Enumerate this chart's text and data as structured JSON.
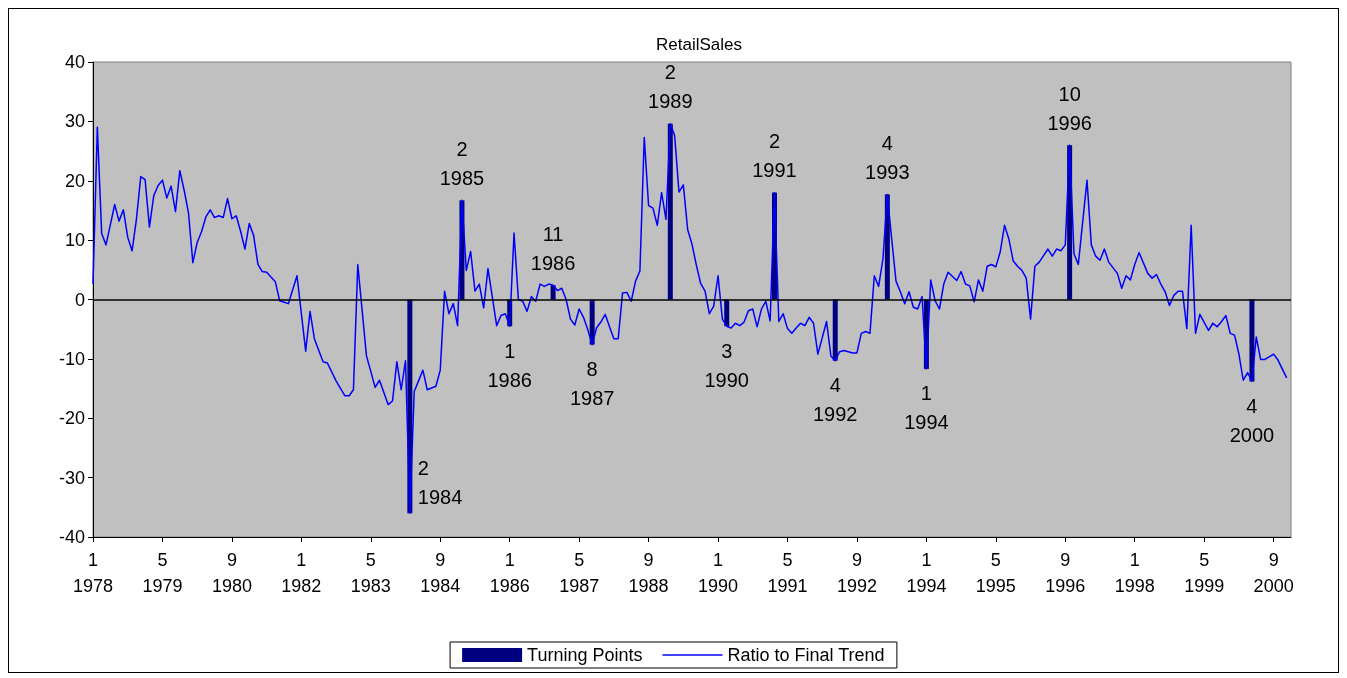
{
  "chart_data": {
    "type": "line",
    "title": "RetailSales",
    "xlim": [
      "1978-01",
      "2001-01"
    ],
    "xticks": [
      {
        "value": "1978-01",
        "label": "1\n1978"
      },
      {
        "value": "1979-05",
        "label": "5\n1979"
      },
      {
        "value": "1980-09",
        "label": "9\n1980"
      },
      {
        "value": "1982-01",
        "label": "1\n1982"
      },
      {
        "value": "1983-05",
        "label": "5\n1983"
      },
      {
        "value": "1984-09",
        "label": "9\n1984"
      },
      {
        "value": "1986-01",
        "label": "1\n1986"
      },
      {
        "value": "1987-05",
        "label": "5\n1987"
      },
      {
        "value": "1988-09",
        "label": "9\n1988"
      },
      {
        "value": "1990-01",
        "label": "1\n1990"
      },
      {
        "value": "1991-05",
        "label": "5\n1991"
      },
      {
        "value": "1992-09",
        "label": "9\n1992"
      },
      {
        "value": "1994-01",
        "label": "1\n1994"
      },
      {
        "value": "1995-05",
        "label": "5\n1995"
      },
      {
        "value": "1996-09",
        "label": "9\n1996"
      },
      {
        "value": "1998-01",
        "label": "1\n1998"
      },
      {
        "value": "1999-05",
        "label": "5\n1999"
      },
      {
        "value": "2000-09",
        "label": "9\n2000"
      }
    ],
    "ylim": [
      -40,
      40
    ],
    "yticks": [
      -40,
      -30,
      -20,
      -10,
      0,
      10,
      20,
      30,
      40
    ],
    "grid": false,
    "legend": "bottom",
    "marker": "none",
    "ref_lines": [
      {
        "axis": "y",
        "value": 0,
        "color": "#000000"
      }
    ],
    "series": [
      {
        "name": "Turning Points",
        "type": "bar",
        "color": "#000080",
        "x": [
          "1984-02",
          "1985-02",
          "1986-01",
          "1986-11",
          "1987-08",
          "1989-02",
          "1990-03",
          "1991-02",
          "1992-04",
          "1993-04",
          "1994-01",
          "1996-10",
          "2000-04"
        ],
        "values": [
          -36,
          16.7,
          -4.5,
          2.4,
          -7.6,
          29.6,
          -4.5,
          18,
          -10.3,
          17.7,
          -11.7,
          26,
          -13.8
        ]
      },
      {
        "name": "Ratio to Final Trend",
        "color": "#0000ff",
        "x": [
          "1978-01",
          "1978-02",
          "1978-03",
          "1978-04",
          "1978-06",
          "1978-07",
          "1978-08",
          "1978-09",
          "1978-10",
          "1978-11",
          "1978-12",
          "1979-01",
          "1979-02",
          "1979-03",
          "1979-04",
          "1979-05",
          "1979-06",
          "1979-07",
          "1979-08",
          "1979-09",
          "1979-10",
          "1979-11",
          "1979-12",
          "1980-01",
          "1980-02",
          "1980-03",
          "1980-04",
          "1980-05",
          "1980-06",
          "1980-07",
          "1980-08",
          "1980-09",
          "1980-10",
          "1980-11",
          "1980-12",
          "1981-01",
          "1981-02",
          "1981-03",
          "1981-04",
          "1981-05",
          "1981-07",
          "1981-08",
          "1981-10",
          "1981-12",
          "1982-02",
          "1982-03",
          "1982-04",
          "1982-06",
          "1982-07",
          "1982-09",
          "1982-11",
          "1982-12",
          "1983-01",
          "1983-02",
          "1983-04",
          "1983-05",
          "1983-06",
          "1983-07",
          "1983-09",
          "1983-10",
          "1983-11",
          "1983-12",
          "1984-01",
          "1984-02",
          "1984-03",
          "1984-04",
          "1984-05",
          "1984-06",
          "1984-08",
          "1984-09",
          "1984-10",
          "1984-11",
          "1984-12",
          "1985-01",
          "1985-02",
          "1985-03",
          "1985-04",
          "1985-05",
          "1985-06",
          "1985-07",
          "1985-08",
          "1985-10",
          "1985-11",
          "1985-12",
          "1986-01",
          "1986-02",
          "1986-03",
          "1986-04",
          "1986-05",
          "1986-06",
          "1986-07",
          "1986-08",
          "1986-09",
          "1986-10",
          "1986-11",
          "1986-12",
          "1987-01",
          "1987-02",
          "1987-03",
          "1987-04",
          "1987-05",
          "1987-06",
          "1987-07",
          "1987-08",
          "1987-09",
          "1987-10",
          "1987-11",
          "1987-12",
          "1988-01",
          "1988-02",
          "1988-03",
          "1988-04",
          "1988-05",
          "1988-06",
          "1988-07",
          "1988-08",
          "1988-09",
          "1988-10",
          "1988-11",
          "1988-12",
          "1989-01",
          "1989-02",
          "1989-03",
          "1989-04",
          "1989-05",
          "1989-06",
          "1989-07",
          "1989-08",
          "1989-09",
          "1989-10",
          "1989-11",
          "1989-12",
          "1990-01",
          "1990-02",
          "1990-03",
          "1990-04",
          "1990-05",
          "1990-06",
          "1990-07",
          "1990-08",
          "1990-09",
          "1990-10",
          "1990-11",
          "1990-12",
          "1991-01",
          "1991-02",
          "1991-03",
          "1991-04",
          "1991-05",
          "1991-06",
          "1991-07",
          "1991-08",
          "1991-09",
          "1991-10",
          "1991-11",
          "1991-12",
          "1992-02",
          "1992-03",
          "1992-04",
          "1992-05",
          "1992-06",
          "1992-08",
          "1992-09",
          "1992-10",
          "1992-11",
          "1992-12",
          "1993-01",
          "1993-02",
          "1993-03",
          "1993-04",
          "1993-05",
          "1993-06",
          "1993-07",
          "1993-08",
          "1993-09",
          "1993-10",
          "1993-11",
          "1993-12",
          "1994-01",
          "1994-02",
          "1994-03",
          "1994-04",
          "1994-05",
          "1994-06",
          "1994-08",
          "1994-09",
          "1994-10",
          "1994-11",
          "1994-12",
          "1995-01",
          "1995-02",
          "1995-03",
          "1995-04",
          "1995-05",
          "1995-06",
          "1995-07",
          "1995-08",
          "1995-09",
          "1995-10",
          "1995-11",
          "1995-12",
          "1996-01",
          "1996-02",
          "1996-03",
          "1996-04",
          "1996-05",
          "1996-06",
          "1996-07",
          "1996-08",
          "1996-09",
          "1996-10",
          "1996-11",
          "1996-12",
          "1997-02",
          "1997-03",
          "1997-04",
          "1997-05",
          "1997-06",
          "1997-07",
          "1997-09",
          "1997-10",
          "1997-11",
          "1997-12",
          "1998-01",
          "1998-02",
          "1998-04",
          "1998-05",
          "1998-06",
          "1998-07",
          "1998-08",
          "1998-09",
          "1998-10",
          "1998-11",
          "1998-12",
          "1999-01",
          "1999-02",
          "1999-03",
          "1999-04",
          "1999-06",
          "1999-07",
          "1999-08",
          "1999-09",
          "1999-10",
          "1999-11",
          "1999-12",
          "2000-01",
          "2000-02",
          "2000-03",
          "2000-04",
          "2000-05",
          "2000-06",
          "2000-07",
          "2000-09",
          "2000-10",
          "2000-12"
        ],
        "values": [
          2.6,
          29.0,
          11.1,
          9.2,
          16.0,
          13.2,
          15.1,
          10.5,
          8.2,
          13.5,
          20.7,
          20.2,
          12.2,
          17.5,
          19.2,
          20.1,
          17.1,
          19.1,
          14.8,
          21.7,
          18.4,
          14.6,
          6.2,
          9.6,
          11.4,
          13.9,
          15.1,
          13.8,
          14.1,
          13.8,
          17.0,
          13.6,
          14.1,
          11.5,
          8.5,
          12.8,
          10.8,
          5.9,
          4.7,
          4.6,
          3.0,
          -0.2,
          -0.7,
          4.0,
          -8.7,
          -2.0,
          -6.6,
          -10.5,
          -10.7,
          -13.7,
          -16.2,
          -16.2,
          -15.2,
          5.9,
          -9.5,
          -12.1,
          -14.8,
          -13.6,
          -17.7,
          -17.1,
          -10.5,
          -15.2,
          -10.3,
          -36.0,
          -15.5,
          -13.7,
          -11.9,
          -15.2,
          -14.6,
          -11.9,
          1.4,
          -2.4,
          -0.7,
          -4.4,
          16.7,
          4.9,
          8.1,
          1.4,
          2.6,
          -1.4,
          5.2,
          -4.4,
          -2.7,
          -2.4,
          -4.5,
          11.2,
          0,
          -0.3,
          -2.0,
          0.5,
          -0.3,
          2.6,
          2.2,
          2.6,
          2.4,
          1.5,
          1.9,
          0,
          -3.3,
          -4.3,
          -1.6,
          -3.0,
          -5.1,
          -7.6,
          -4.8,
          -3.8,
          -2.5,
          -4.6,
          -6.6,
          -6.6,
          1.1,
          1.2,
          -0.3,
          3.1,
          4.8,
          27.3,
          15.8,
          15.4,
          12.5,
          18.0,
          13.5,
          29.6,
          27.6,
          18.1,
          19.3,
          11.8,
          9.3,
          5.8,
          2.7,
          1.4,
          -2.4,
          -1.1,
          4.0,
          -3.3,
          -4.5,
          -4.8,
          -4.0,
          -4.4,
          -3.8,
          -1.9,
          -1.6,
          -4.6,
          -1.6,
          -0.3,
          -3.6,
          18.0,
          -3.7,
          -2.4,
          -4.9,
          -5.7,
          -4.8,
          -4.0,
          -4.4,
          -3.0,
          -4.0,
          -9.2,
          -3.7,
          -9.5,
          -10.3,
          -8.8,
          -8.6,
          -9.0,
          -9.0,
          -5.7,
          -5.4,
          -5.7,
          4.0,
          2.2,
          6.9,
          17.7,
          10.2,
          3.1,
          1.3,
          -0.7,
          1.3,
          -1.3,
          -1.6,
          0.5,
          -11.7,
          3.3,
          -0.2,
          -1.6,
          2.6,
          4.6,
          3.2,
          4.7,
          2.6,
          2.3,
          -0.4,
          3.3,
          1.4,
          5.6,
          5.9,
          5.5,
          8.0,
          12.5,
          10.2,
          6.5,
          5.6,
          4.9,
          3.6,
          -3.3,
          5.6,
          6.3,
          7.4,
          8.5,
          7.3,
          8.5,
          8.2,
          9.2,
          26.0,
          7.7,
          5.9,
          20.1,
          9.2,
          7.3,
          6.6,
          8.5,
          6.3,
          4.4,
          1.9,
          4.0,
          3.3,
          5.9,
          7.9,
          4.4,
          3.6,
          4.2,
          2.6,
          1.3,
          -1.0,
          0.7,
          1.4,
          1.4,
          -4.9,
          12.5,
          -5.7,
          -2.5,
          -5.2,
          -4.0,
          -4.6,
          -3.7,
          -2.7,
          -5.7,
          -6.0,
          -9.2,
          -13.6,
          -12.3,
          -13.8,
          -6.3,
          -10.1,
          -10.1,
          -9.2,
          -10.2,
          -13.2
        ]
      }
    ],
    "annotations": [
      {
        "text": "2\n1984",
        "x": "1984-02",
        "y": -36
      },
      {
        "text": "2\n1985",
        "x": "1985-02",
        "y": 16.7
      },
      {
        "text": "1\n1986",
        "x": "1986-01",
        "y": -4.5
      },
      {
        "text": "11\n1986",
        "x": "1986-11",
        "y": 2.4
      },
      {
        "text": "8\n1987",
        "x": "1987-08",
        "y": -7.6
      },
      {
        "text": "2\n1989",
        "x": "1989-02",
        "y": 29.6
      },
      {
        "text": "3\n1990",
        "x": "1990-03",
        "y": -4.5
      },
      {
        "text": "2\n1991",
        "x": "1991-02",
        "y": 18
      },
      {
        "text": "4\n1992",
        "x": "1992-04",
        "y": -10.3
      },
      {
        "text": "4\n1993",
        "x": "1993-04",
        "y": 17.7
      },
      {
        "text": "1\n1994",
        "x": "1994-01",
        "y": -11.7
      },
      {
        "text": "10\n1996",
        "x": "1996-10",
        "y": 26
      },
      {
        "text": "4\n2000",
        "x": "2000-04",
        "y": -13.8
      }
    ]
  }
}
